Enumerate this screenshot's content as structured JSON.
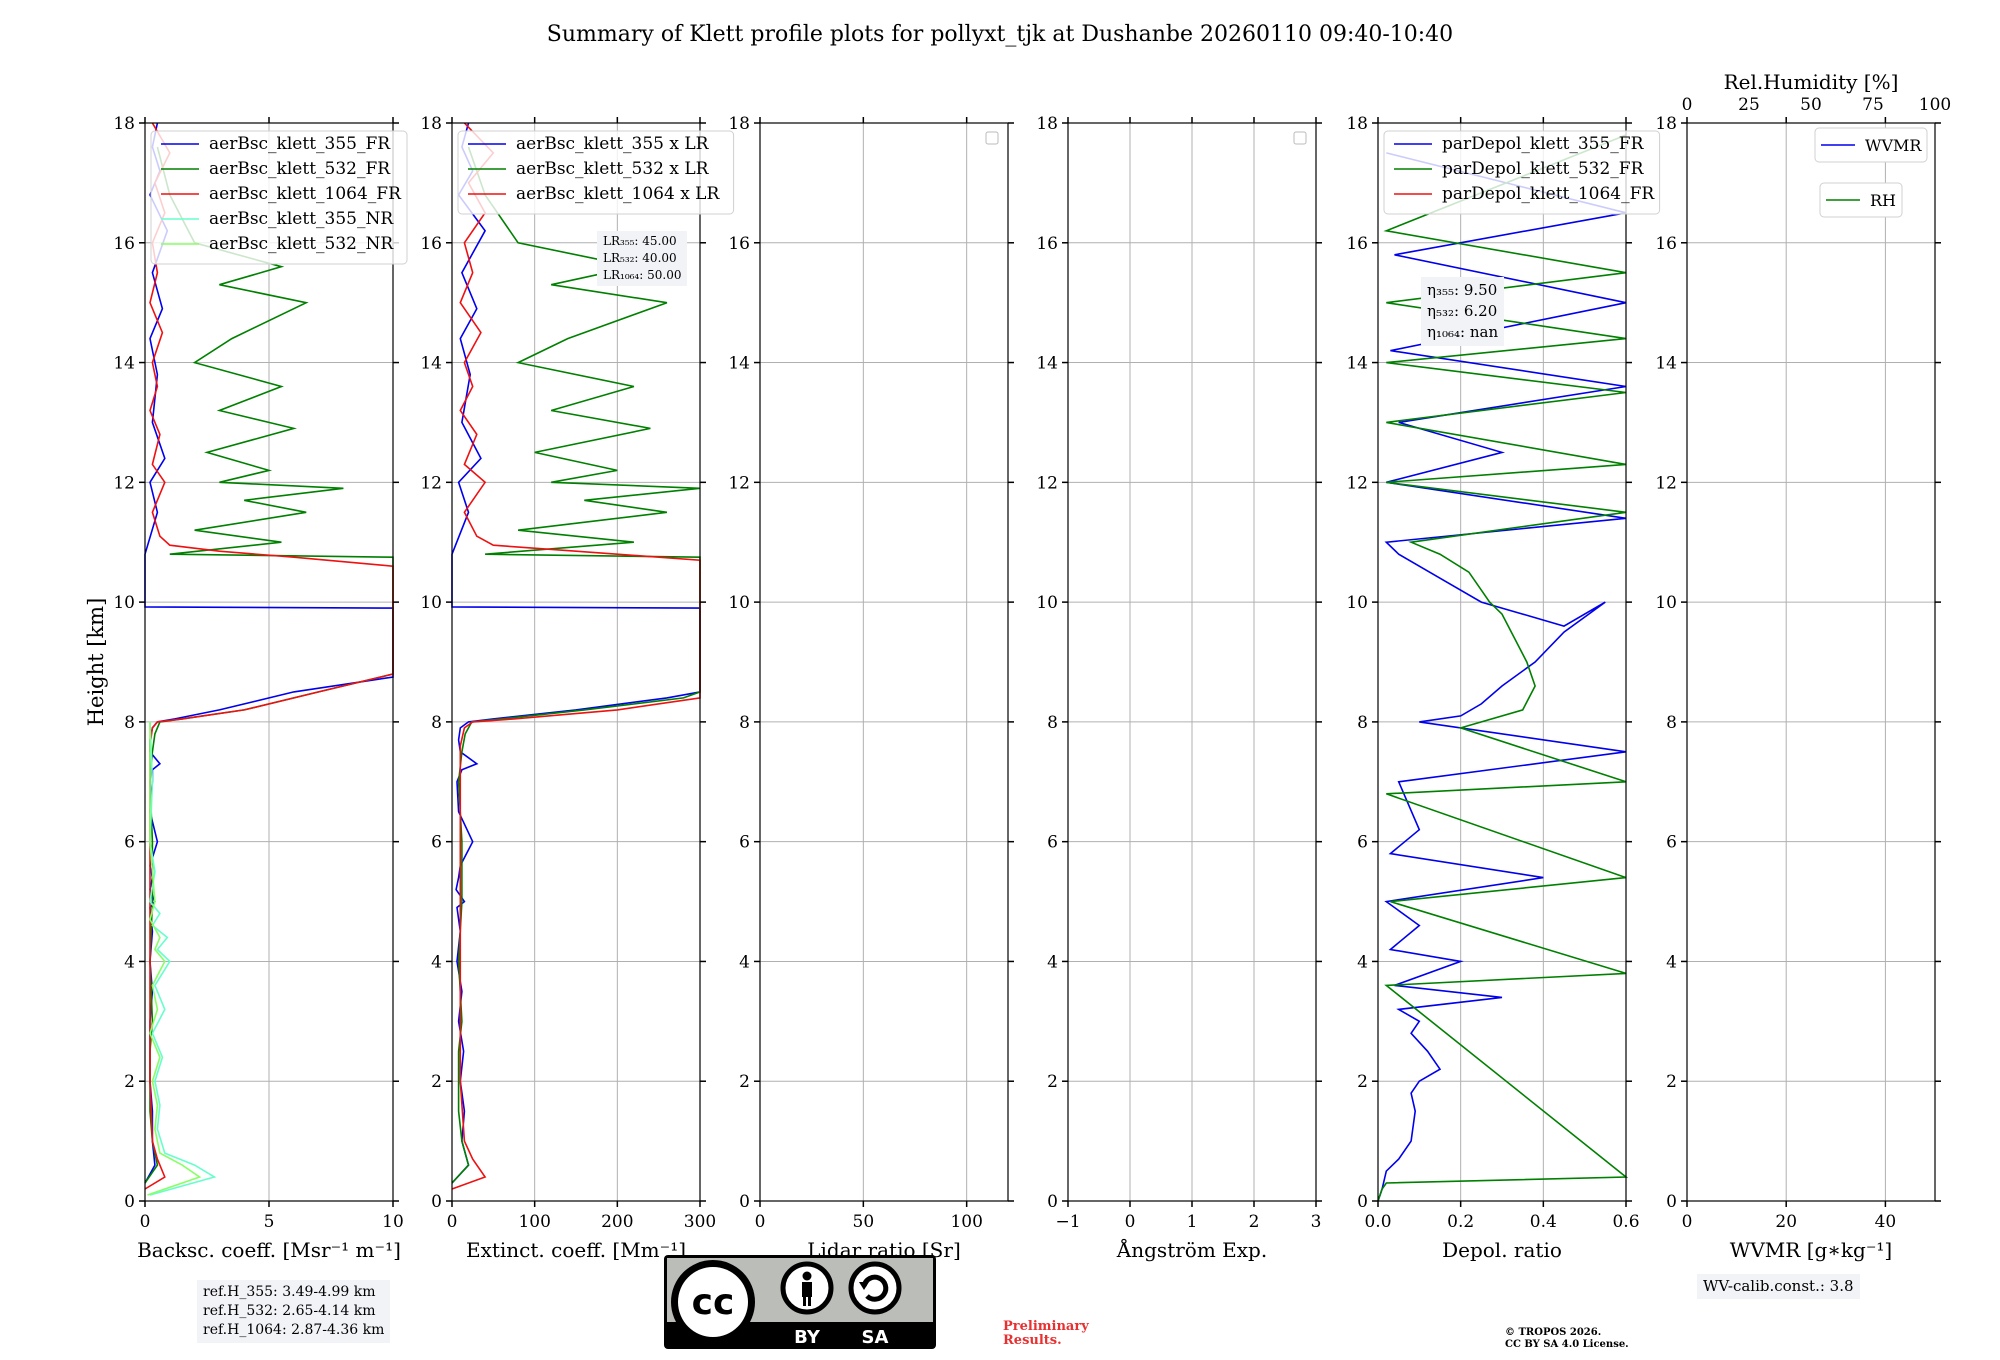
{
  "title": "Summary of Klett profile plots for pollyxt_tjk at Dushanbe 20260110 09:40-10:40",
  "colors": {
    "blue": "#0000ee",
    "green": "#008000",
    "red": "#ee1111",
    "cyan": "#66ffcc",
    "lightgreen": "#88ff66",
    "axis": "#000000",
    "grid": "#b0b0b0"
  },
  "chart_data": [
    {
      "id": "backscatter",
      "type": "line",
      "xlabel": "Backsc. coeff. [Msr⁻¹ m⁻¹]",
      "ylabel": "Height [km]",
      "xlim": [
        0,
        10
      ],
      "ylim": [
        0,
        18
      ],
      "xticks": [
        "0",
        "5",
        "10"
      ],
      "xtick_values": [
        0,
        5,
        10
      ],
      "yticks": [
        "0",
        "2",
        "4",
        "6",
        "8",
        "10",
        "12",
        "14",
        "16",
        "18"
      ],
      "legend": [
        "aerBsc_klett_355_FR",
        "aerBsc_klett_532_FR",
        "aerBsc_klett_1064_FR",
        "aerBsc_klett_355_NR",
        "aerBsc_klett_532_NR"
      ],
      "series": [
        {
          "name": "aerBsc_klett_355_FR",
          "color": "blue",
          "x": [
            0,
            0.4,
            0.3,
            0.3,
            0.2,
            0.2,
            0.2,
            0.3,
            0.2,
            0.3,
            0.2,
            0.4,
            0.2,
            0.3,
            0.2,
            0.5,
            0.2,
            0.3,
            0.3,
            0.6,
            0.2,
            0.2,
            0.3,
            0.5,
            1.2,
            3.0,
            6.0,
            10.0,
            10.0,
            0,
            0,
            0.5,
            0.2,
            0.8,
            0.3,
            0.5,
            0.2,
            0.7,
            0.3,
            0.9,
            0.2,
            0.6,
            0.3,
            0.5
          ],
          "y": [
            0.3,
            0.6,
            1.0,
            1.5,
            2.0,
            2.5,
            3.0,
            3.5,
            4.0,
            4.5,
            4.9,
            5.0,
            5.2,
            5.4,
            5.6,
            6.0,
            6.5,
            7.0,
            7.2,
            7.3,
            7.5,
            7.7,
            7.9,
            8.0,
            8.05,
            8.2,
            8.5,
            8.75,
            9.9,
            9.92,
            10.8,
            11.5,
            12.0,
            12.4,
            13.0,
            13.8,
            14.4,
            14.9,
            15.5,
            16.2,
            16.8,
            17.2,
            17.6,
            18.0
          ]
        },
        {
          "name": "aerBsc_klett_532_FR",
          "color": "green",
          "x": [
            0,
            0.5,
            0.3,
            0.2,
            0.2,
            0.2,
            0.3,
            0.2,
            0.3,
            0.3,
            0.2,
            0.3,
            0.4,
            0.6,
            1.5,
            4.0,
            7.0,
            10.0,
            10,
            1.0,
            5.5,
            2.0,
            6.5,
            4.0,
            8.0,
            3.0,
            5.0,
            2.5,
            6.0,
            3.0,
            5.5,
            2.0,
            3.5,
            6.5,
            3.0,
            5.5,
            2.0,
            1.0,
            0.5
          ],
          "y": [
            0.3,
            0.6,
            1.0,
            1.5,
            2.0,
            2.5,
            3.0,
            4.0,
            5.0,
            6.0,
            7.0,
            7.5,
            7.8,
            8.0,
            8.05,
            8.2,
            8.5,
            8.8,
            10.75,
            10.8,
            11.0,
            11.2,
            11.5,
            11.7,
            11.9,
            12.0,
            12.2,
            12.5,
            12.9,
            13.2,
            13.6,
            14.0,
            14.4,
            15.0,
            15.3,
            15.6,
            16.0,
            16.8,
            17.6
          ]
        },
        {
          "name": "aerBsc_klett_1064_FR",
          "color": "red",
          "x": [
            0,
            0.8,
            0.5,
            0.3,
            0.2,
            0.2,
            0.2,
            0.2,
            0.2,
            0.2,
            0.2,
            0.3,
            0.5,
            1.5,
            4.0,
            7.0,
            10.0,
            10.0,
            6.0,
            3.0,
            1.0,
            0.6,
            0.3,
            0.8,
            0.3,
            0.6,
            0.2,
            0.5,
            0.3,
            0.7,
            0.2,
            0.5,
            0.3,
            0.8,
            0.4,
            1.0,
            0.3
          ],
          "y": [
            0.2,
            0.4,
            0.7,
            1.0,
            2.0,
            3.0,
            4.0,
            5.0,
            6.0,
            7.0,
            7.6,
            7.9,
            8.0,
            8.05,
            8.2,
            8.5,
            8.8,
            10.6,
            10.75,
            10.85,
            10.95,
            11.1,
            11.5,
            12.0,
            12.3,
            12.8,
            13.2,
            13.6,
            14.0,
            14.5,
            15.0,
            15.5,
            16.0,
            16.5,
            17.0,
            17.5,
            18.0
          ]
        },
        {
          "name": "aerBsc_klett_355_NR",
          "color": "cyan",
          "x": [
            0.2,
            2.8,
            2.0,
            0.8,
            0.5,
            0.6,
            0.4,
            0.7,
            0.3,
            0.8,
            0.4,
            1.0,
            0.5,
            0.9,
            0.3,
            0.6,
            0.2,
            0.4,
            0.2,
            0.3,
            0.2
          ],
          "y": [
            0.1,
            0.4,
            0.6,
            0.8,
            1.2,
            1.6,
            2.0,
            2.4,
            2.8,
            3.2,
            3.6,
            4.0,
            4.2,
            4.4,
            4.6,
            4.8,
            5.0,
            5.5,
            6.0,
            7.0,
            8.0
          ]
        },
        {
          "name": "aerBsc_klett_532_NR",
          "color": "lightgreen",
          "x": [
            0.1,
            2.2,
            1.5,
            0.6,
            0.4,
            0.5,
            0.3,
            0.6,
            0.2,
            0.5,
            0.3,
            0.8,
            0.4,
            0.6,
            0.2,
            0.4,
            0.2,
            0.2
          ],
          "y": [
            0.1,
            0.4,
            0.6,
            0.8,
            1.2,
            1.6,
            2.0,
            2.4,
            2.8,
            3.2,
            3.6,
            4.0,
            4.2,
            4.4,
            4.7,
            5.0,
            6.0,
            8.0
          ]
        }
      ],
      "annotation": [
        "ref.H_355: 3.49-4.99 km",
        "ref.H_532: 2.65-4.14 km",
        "ref.H_1064: 2.87-4.36 km"
      ]
    },
    {
      "id": "extinction",
      "type": "line",
      "xlabel": "Extinct. coeff. [Mm⁻¹]",
      "xlim": [
        0,
        300
      ],
      "ylim": [
        0,
        18
      ],
      "xticks": [
        "0",
        "100",
        "200",
        "300"
      ],
      "xtick_values": [
        0,
        100,
        200,
        300
      ],
      "yticks": [
        "0",
        "2",
        "4",
        "6",
        "8",
        "10",
        "12",
        "14",
        "16",
        "18"
      ],
      "legend": [
        "aerBsc_klett_355 x LR",
        "aerBsc_klett_532 x LR",
        "aerBsc_klett_1064 x LR"
      ],
      "series": [
        {
          "name": "aerBsc_klett_355 x LR",
          "color": "blue",
          "x": [
            0,
            20,
            12,
            15,
            10,
            14,
            8,
            12,
            6,
            10,
            6,
            15,
            5,
            8,
            10,
            25,
            8,
            6,
            12,
            30,
            10,
            8,
            10,
            20,
            50,
            150,
            260,
            300,
            300,
            0,
            0,
            20,
            8,
            35,
            12,
            22,
            10,
            30,
            12,
            40,
            8,
            25,
            12,
            20
          ],
          "y": [
            0.3,
            0.6,
            1.0,
            1.5,
            2.0,
            2.5,
            3.0,
            3.5,
            4.0,
            4.5,
            4.9,
            5.0,
            5.2,
            5.4,
            5.6,
            6.0,
            6.5,
            7.0,
            7.2,
            7.3,
            7.5,
            7.7,
            7.9,
            8.0,
            8.05,
            8.2,
            8.4,
            8.5,
            9.9,
            9.92,
            10.8,
            11.5,
            12.0,
            12.4,
            13.0,
            13.8,
            14.4,
            14.9,
            15.5,
            16.2,
            16.8,
            17.2,
            17.6,
            18.0
          ]
        },
        {
          "name": "aerBsc_klett_532 x LR",
          "color": "green",
          "x": [
            0,
            20,
            12,
            8,
            8,
            8,
            12,
            8,
            12,
            12,
            8,
            12,
            16,
            24,
            60,
            160,
            280,
            300,
            300,
            40,
            220,
            80,
            260,
            160,
            300,
            120,
            200,
            100,
            240,
            120,
            220,
            80,
            140,
            260,
            120,
            220,
            80,
            40,
            20
          ],
          "y": [
            0.3,
            0.6,
            1.0,
            1.5,
            2.0,
            2.5,
            3.0,
            4.0,
            5.0,
            6.0,
            7.0,
            7.5,
            7.8,
            8.0,
            8.05,
            8.2,
            8.4,
            8.5,
            10.75,
            10.8,
            11.0,
            11.2,
            11.5,
            11.7,
            11.9,
            12.0,
            12.2,
            12.5,
            12.9,
            13.2,
            13.6,
            14.0,
            14.4,
            15.0,
            15.3,
            15.6,
            16.0,
            16.8,
            17.6
          ]
        },
        {
          "name": "aerBsc_klett_1064 x LR",
          "color": "red",
          "x": [
            0,
            40,
            25,
            15,
            10,
            10,
            10,
            10,
            10,
            10,
            10,
            15,
            25,
            75,
            200,
            300,
            300,
            300,
            300,
            150,
            50,
            30,
            15,
            40,
            15,
            30,
            10,
            25,
            15,
            35,
            10,
            25,
            15,
            40,
            20,
            50,
            15
          ],
          "y": [
            0.2,
            0.4,
            0.7,
            1.0,
            2.0,
            3.0,
            4.0,
            5.0,
            6.0,
            7.0,
            7.6,
            7.9,
            8.0,
            8.05,
            8.2,
            8.4,
            8.5,
            10.6,
            10.7,
            10.85,
            10.95,
            11.1,
            11.5,
            12.0,
            12.3,
            12.8,
            13.2,
            13.6,
            14.0,
            14.5,
            15.0,
            15.5,
            16.0,
            16.5,
            17.0,
            17.5,
            18.0
          ]
        }
      ],
      "lr_lines": [
        "LR₃₅₅: 45.00",
        "LR₅₃₂: 40.00",
        "LR₁₀₆₄: 50.00"
      ]
    },
    {
      "id": "lidar_ratio",
      "type": "line",
      "xlabel": "Lidar ratio [Sr]",
      "xlim": [
        0,
        120
      ],
      "ylim": [
        0,
        18
      ],
      "xticks": [
        "0",
        "50",
        "100"
      ],
      "xtick_values": [
        0,
        50,
        100
      ],
      "yticks": [
        "0",
        "2",
        "4",
        "6",
        "8",
        "10",
        "12",
        "14",
        "16",
        "18"
      ],
      "series": []
    },
    {
      "id": "angstrom",
      "type": "line",
      "xlabel": "Ångström Exp.",
      "xlim": [
        -1,
        3
      ],
      "ylim": [
        0,
        18
      ],
      "xticks": [
        "−1",
        "0",
        "1",
        "2",
        "3"
      ],
      "xtick_values": [
        -1,
        0,
        1,
        2,
        3
      ],
      "yticks": [
        "0",
        "2",
        "4",
        "6",
        "8",
        "10",
        "12",
        "14",
        "16",
        "18"
      ],
      "series": []
    },
    {
      "id": "depol",
      "type": "line",
      "xlabel": "Depol. ratio",
      "xlim": [
        0,
        0.6
      ],
      "ylim": [
        0,
        18
      ],
      "xticks": [
        "0.0",
        "0.2",
        "0.4",
        "0.6"
      ],
      "xtick_values": [
        0,
        0.2,
        0.4,
        0.6
      ],
      "yticks": [
        "0",
        "2",
        "4",
        "6",
        "8",
        "10",
        "12",
        "14",
        "16",
        "18"
      ],
      "legend": [
        "parDepol_klett_355_FR",
        "parDepol_klett_532_FR",
        "parDepol_klett_1064_FR"
      ],
      "series": [
        {
          "name": "parDepol_klett_355_FR",
          "color": "blue",
          "x": [
            0,
            0.01,
            0.02,
            0.05,
            0.08,
            0.09,
            0.08,
            0.1,
            0.15,
            0.12,
            0.08,
            0.1,
            0.05,
            0.3,
            0.04,
            0.2,
            0.03,
            0.1,
            0.02,
            0.4,
            0.03,
            0.1,
            0.05,
            0.6,
            0.1,
            0.2,
            0.25,
            0.3,
            0.38,
            0.45,
            0.55,
            0.45,
            0.35,
            0.25,
            0.15,
            0.05,
            0.02,
            0.6,
            0.02,
            0.3,
            0.05,
            0.6,
            0.03,
            0.6,
            0.04,
            0.6,
            0.02
          ],
          "y": [
            0.0,
            0.2,
            0.5,
            0.7,
            1.0,
            1.5,
            1.8,
            2.0,
            2.2,
            2.5,
            2.8,
            3.0,
            3.2,
            3.4,
            3.6,
            4.0,
            4.2,
            4.6,
            5.0,
            5.4,
            5.8,
            6.2,
            7.0,
            7.5,
            8.0,
            8.1,
            8.3,
            8.6,
            9.0,
            9.5,
            10.0,
            9.6,
            9.8,
            10.0,
            10.4,
            10.8,
            11.0,
            11.4,
            12.0,
            12.5,
            13.0,
            13.6,
            14.2,
            15.0,
            15.8,
            16.5,
            17.5
          ]
        },
        {
          "name": "parDepol_klett_532_FR",
          "color": "green",
          "x": [
            0,
            0.01,
            0.02,
            0.6,
            0.02,
            0.6,
            0.03,
            0.6,
            0.02,
            0.6,
            0.2,
            0.35,
            0.38,
            0.36,
            0.33,
            0.3,
            0.27,
            0.25,
            0.22,
            0.15,
            0.08,
            0.6,
            0.02,
            0.6,
            0.02,
            0.6,
            0.02,
            0.6,
            0.02,
            0.6,
            0.02,
            0.6
          ],
          "y": [
            0.0,
            0.2,
            0.3,
            0.4,
            3.6,
            3.8,
            5.0,
            5.4,
            6.8,
            7.0,
            7.9,
            8.2,
            8.6,
            9.0,
            9.4,
            9.8,
            10.0,
            10.2,
            10.5,
            10.8,
            11.0,
            11.5,
            12.0,
            12.3,
            13.0,
            13.5,
            14.0,
            14.4,
            15.0,
            15.5,
            16.2,
            17.8
          ]
        },
        {
          "name": "parDepol_klett_1064_FR",
          "color": "red",
          "x": [],
          "y": []
        }
      ],
      "eta_lines": [
        "η₃₅₅: 9.50",
        "η₅₃₂: 6.20",
        "η₁₀₆₄: nan"
      ]
    },
    {
      "id": "wvmr",
      "type": "line",
      "xlabel": "WVMR [g∗kg⁻¹]",
      "xlim": [
        0,
        50
      ],
      "ylim": [
        0,
        18
      ],
      "xticks": [
        "0",
        "20",
        "40"
      ],
      "xtick_values": [
        0,
        20,
        40
      ],
      "yticks": [
        "0",
        "2",
        "4",
        "6",
        "8",
        "10",
        "12",
        "14",
        "16",
        "18"
      ],
      "top_xlabel": "Rel.Humidity [%]",
      "top_xticks": [
        "0",
        "25",
        "50",
        "75",
        "100"
      ],
      "legend": [
        "WVMR",
        "RH"
      ],
      "series": [],
      "annotation": "WV-calib.const.: 3.8"
    }
  ],
  "license": {
    "cc": "cc",
    "by": "BY",
    "sa": "SA"
  },
  "preliminary": [
    "Preliminary",
    "Results."
  ],
  "copyright": [
    "© TROPOS 2026.",
    "CC BY SA 4.0 License."
  ]
}
